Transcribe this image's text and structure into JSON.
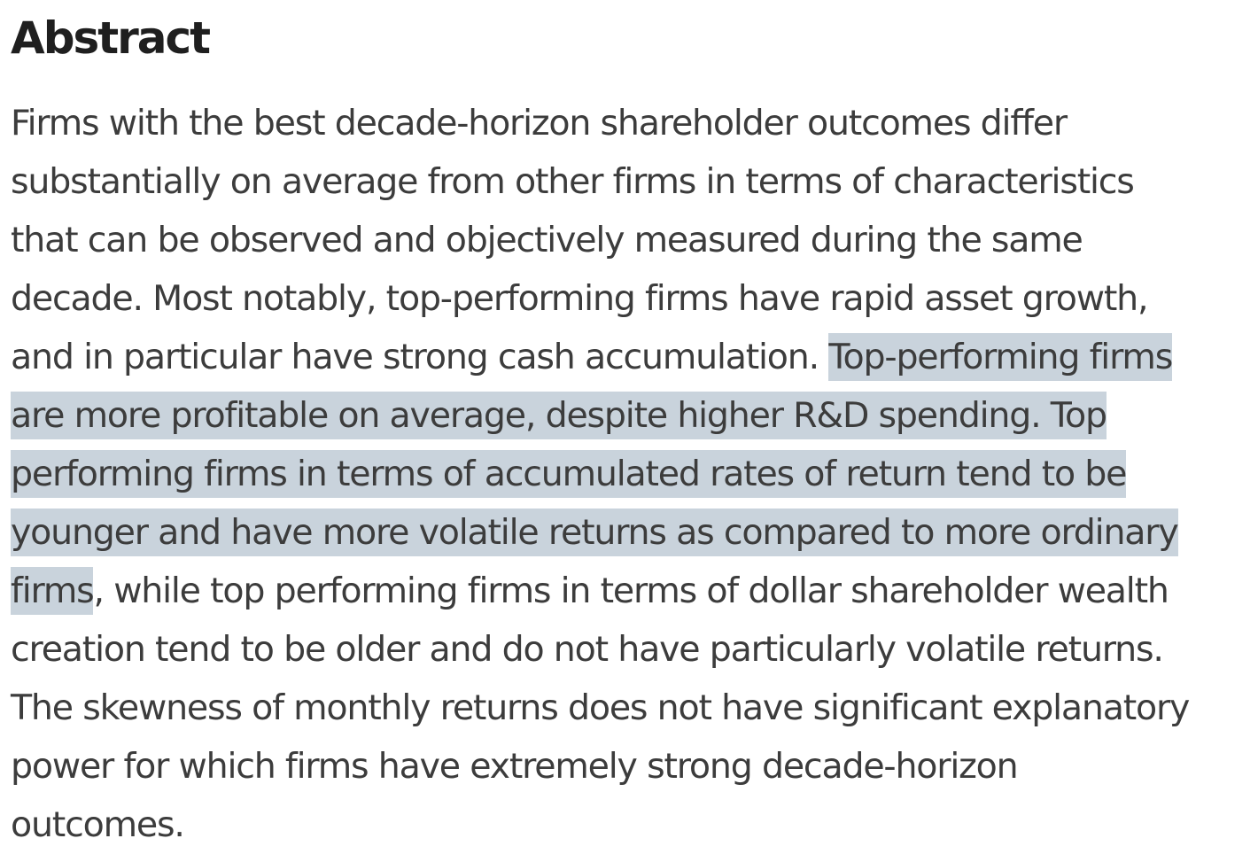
{
  "heading": "Abstract",
  "lines": [
    {
      "before": "Firms with the best decade-horizon shareholder outcomes differ",
      "highlight": "",
      "after": ""
    },
    {
      "before": "substantially on average from other firms in terms of characteristics",
      "highlight": "",
      "after": ""
    },
    {
      "before": "that can be observed and objectively measured during the same",
      "highlight": "",
      "after": ""
    },
    {
      "before": "decade. Most notably, top-performing firms have rapid asset growth,",
      "highlight": "",
      "after": ""
    },
    {
      "before": "and in particular have strong cash accumulation. ",
      "highlight": "Top-performing firms",
      "after": ""
    },
    {
      "before": "",
      "highlight": "are more profitable on average, despite higher R&D spending. Top",
      "after": ""
    },
    {
      "before": "",
      "highlight": "performing firms in terms of accumulated rates of return tend to be",
      "after": ""
    },
    {
      "before": "",
      "highlight": "younger and have more volatile returns as compared to more ordinary",
      "after": ""
    },
    {
      "before": "",
      "highlight": "firms",
      "after": ", while top performing firms in terms of dollar shareholder wealth"
    },
    {
      "before": "creation tend to be older and do not have particularly volatile returns.",
      "highlight": "",
      "after": ""
    },
    {
      "before": "The skewness of monthly returns does not have significant explanatory",
      "highlight": "",
      "after": ""
    },
    {
      "before": "power for which firms have extremely strong decade-horizon",
      "highlight": "",
      "after": ""
    },
    {
      "before": "outcomes.",
      "highlight": "",
      "after": ""
    }
  ],
  "colors": {
    "heading": "#1f1f1f",
    "body_text": "#3c3c3c",
    "selection_highlight": "#c9d3dc",
    "background": "#ffffff"
  }
}
